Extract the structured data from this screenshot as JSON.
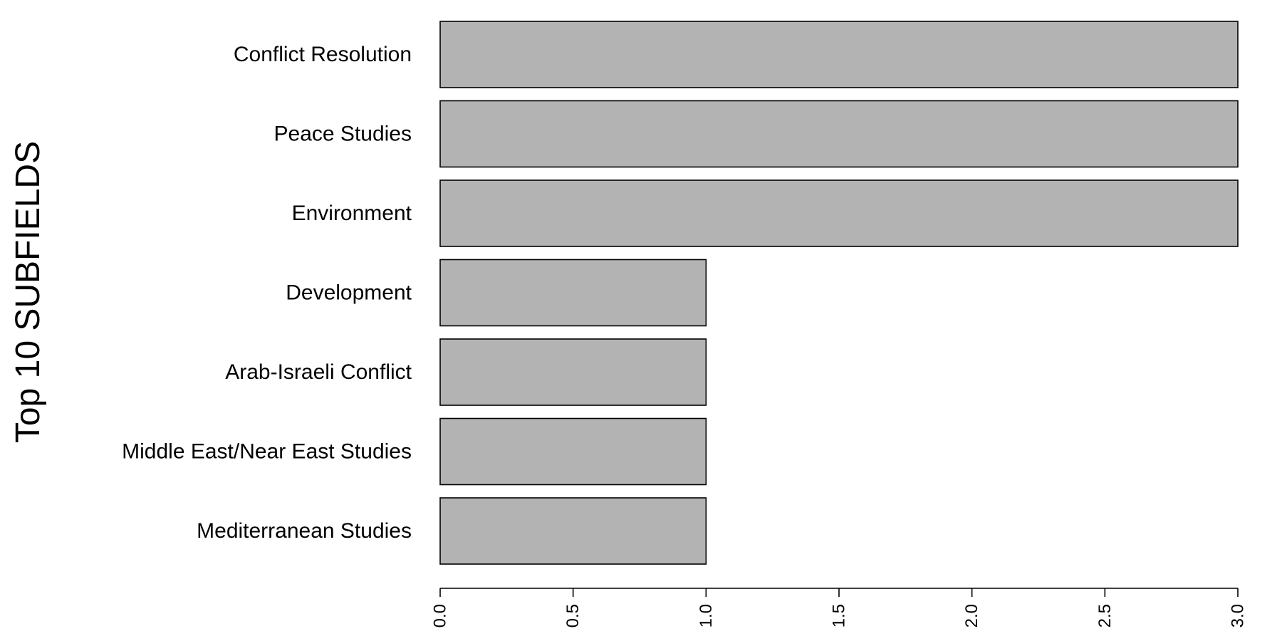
{
  "chart_data": {
    "type": "bar",
    "orientation": "horizontal",
    "ylabel": "Top 10 SUBFIELDS",
    "xlabel": "",
    "title": "",
    "categories": [
      "Conflict Resolution",
      "Peace Studies",
      "Environment",
      "Development",
      "Arab-Israeli Conflict",
      "Middle East/Near East Studies",
      "Mediterranean Studies"
    ],
    "values": [
      3,
      3,
      3,
      1,
      1,
      1,
      1
    ],
    "xlim": [
      0,
      3
    ],
    "x_ticks": [
      "0.0",
      "0.5",
      "1.0",
      "1.5",
      "2.0",
      "2.5",
      "3.0"
    ],
    "x_tick_values": [
      0,
      0.5,
      1,
      1.5,
      2,
      2.5,
      3
    ],
    "bar_color": "#b3b3b3",
    "grid": false,
    "legend": "none"
  }
}
